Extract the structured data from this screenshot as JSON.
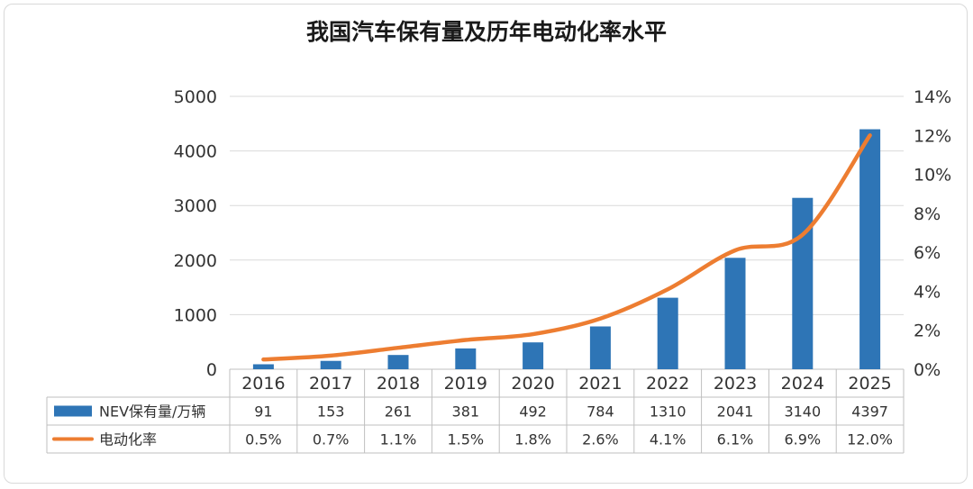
{
  "chart_data": {
    "type": "bar+line",
    "title": "我国汽车保有量及历年电动化率水平",
    "categories": [
      "2016",
      "2017",
      "2018",
      "2019",
      "2020",
      "2021",
      "2022",
      "2023",
      "2024",
      "2025"
    ],
    "series": [
      {
        "name": "NEV保有量/万辆",
        "type": "bar",
        "axis": "left",
        "color": "#2e75b6",
        "values": [
          91,
          153,
          261,
          381,
          492,
          784,
          1310,
          2041,
          3140,
          4397
        ],
        "labels": [
          "91",
          "153",
          "261",
          "381",
          "492",
          "784",
          "1310",
          "2041",
          "3140",
          "4397"
        ]
      },
      {
        "name": "电动化率",
        "type": "line",
        "axis": "right",
        "color": "#ed7d31",
        "values": [
          0.5,
          0.7,
          1.1,
          1.5,
          1.8,
          2.6,
          4.1,
          6.1,
          6.9,
          12.0
        ],
        "labels": [
          "0.5%",
          "0.7%",
          "1.1%",
          "1.5%",
          "1.8%",
          "2.6%",
          "4.1%",
          "6.1%",
          "6.9%",
          "12.0%"
        ]
      }
    ],
    "y_left": {
      "ylim": [
        0,
        5000
      ],
      "ticks": [
        "0",
        "1000",
        "2000",
        "3000",
        "4000",
        "5000"
      ]
    },
    "y_right": {
      "ylim": [
        0,
        14
      ],
      "ticks": [
        "0%",
        "2%",
        "4%",
        "6%",
        "8%",
        "10%",
        "12%",
        "14%"
      ]
    },
    "grid": true,
    "data_table": true
  }
}
